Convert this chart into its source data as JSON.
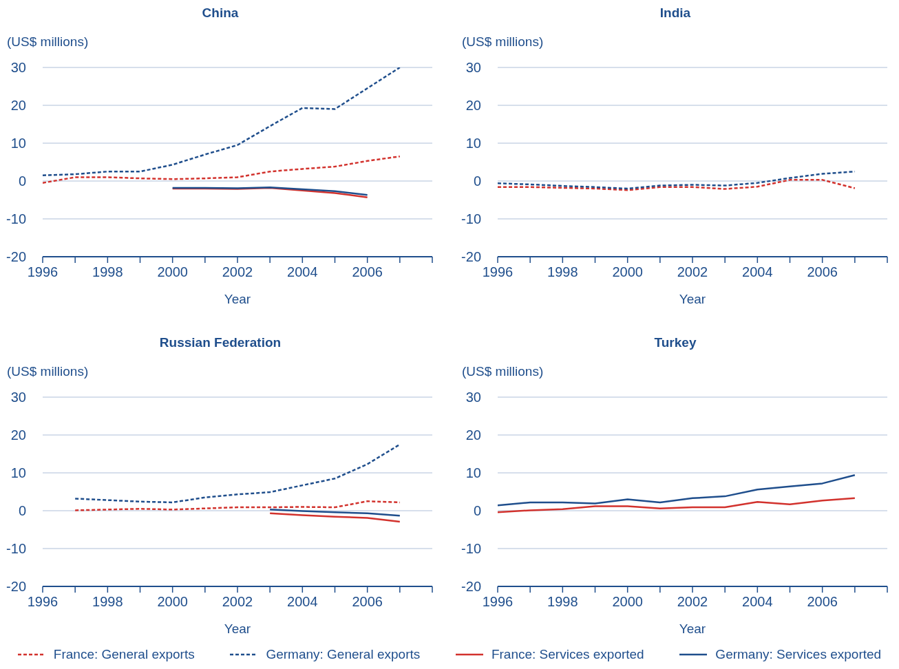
{
  "chart_data": [
    {
      "type": "line",
      "title": "China",
      "ylabel": "(US$ millions)",
      "xlabel": "Year",
      "x": [
        1996,
        1997,
        1998,
        1999,
        2000,
        2001,
        2002,
        2003,
        2004,
        2005,
        2006,
        2007
      ],
      "xlim": [
        1996,
        2008
      ],
      "xticks": [
        1996,
        {
          "value": 1997,
          "label": null
        },
        1998,
        {
          "value": 1999,
          "label": null
        },
        2000,
        {
          "value": 2001,
          "label": null
        },
        2002,
        {
          "value": 2003,
          "label": null
        },
        2004,
        {
          "value": 2005,
          "label": null
        },
        2006,
        {
          "value": 2007,
          "label": null
        },
        {
          "value": 2008,
          "label": null
        }
      ],
      "ylim": [
        -20,
        30
      ],
      "yticks": [
        -20,
        -10,
        0,
        10,
        20,
        30
      ],
      "grid": "y",
      "legend": "bottom",
      "series": [
        {
          "name": "France: General exports",
          "color": "#d2322d",
          "line_style": "dashed",
          "values": [
            -0.5,
            1,
            1,
            0.7,
            0.5,
            0.7,
            1,
            2.5,
            3.2,
            3.8,
            5.3,
            6.5
          ]
        },
        {
          "name": "Germany: General exports",
          "color": "#1f4e8c",
          "line_style": "dashed",
          "values": [
            1.5,
            1.8,
            2.5,
            2.5,
            4.3,
            7,
            9.5,
            14.5,
            19.3,
            19,
            24.5,
            30
          ]
        },
        {
          "name": "France: Services exported",
          "color": "#d2322d",
          "line_style": "solid",
          "values": [
            null,
            null,
            null,
            null,
            -2,
            -2,
            -2.1,
            -1.8,
            -2.5,
            -3.2,
            -4.3,
            null
          ]
        },
        {
          "name": "Germany: Services exported",
          "color": "#1f4e8c",
          "line_style": "solid",
          "values": [
            null,
            null,
            null,
            null,
            -1.8,
            -1.8,
            -1.9,
            -1.7,
            -2.2,
            -2.7,
            -3.7,
            null
          ]
        }
      ]
    },
    {
      "type": "line",
      "title": "India",
      "ylabel": "(US$ millions)",
      "xlabel": "Year",
      "x": [
        1996,
        1997,
        1998,
        1999,
        2000,
        2001,
        2002,
        2003,
        2004,
        2005,
        2006,
        2007
      ],
      "xlim": [
        1996,
        2008
      ],
      "xticks": [
        1996,
        {
          "value": 1997,
          "label": null
        },
        1998,
        {
          "value": 1999,
          "label": null
        },
        2000,
        {
          "value": 2001,
          "label": null
        },
        2002,
        {
          "value": 2003,
          "label": null
        },
        2004,
        {
          "value": 2005,
          "label": null
        },
        2006,
        {
          "value": 2007,
          "label": null
        },
        {
          "value": 2008,
          "label": null
        }
      ],
      "ylim": [
        -20,
        30
      ],
      "yticks": [
        -20,
        -10,
        0,
        10,
        20,
        30
      ],
      "grid": "y",
      "series": [
        {
          "color": "#d2322d",
          "line_style": "dashed",
          "values": [
            -1.6,
            -1.6,
            -1.8,
            -2,
            -2.4,
            -1.6,
            -1.6,
            -2.1,
            -1.5,
            0.3,
            0.3,
            -1.9
          ]
        },
        {
          "color": "#1f4e8c",
          "line_style": "dashed",
          "values": [
            -0.6,
            -0.9,
            -1.3,
            -1.6,
            -2,
            -1.2,
            -1,
            -1.2,
            -0.5,
            0.8,
            1.9,
            2.5
          ]
        }
      ]
    },
    {
      "type": "line",
      "title": "Russian Federation",
      "ylabel": "(US$ millions)",
      "xlabel": "Year",
      "x": [
        1997,
        1998,
        1999,
        2000,
        2001,
        2002,
        2003,
        2004,
        2005,
        2006,
        2007
      ],
      "xlim": [
        1996,
        2008
      ],
      "xticks": [
        1996,
        {
          "value": 1997,
          "label": null
        },
        1998,
        {
          "value": 1999,
          "label": null
        },
        2000,
        {
          "value": 2001,
          "label": null
        },
        2002,
        {
          "value": 2003,
          "label": null
        },
        2004,
        {
          "value": 2005,
          "label": null
        },
        2006,
        {
          "value": 2007,
          "label": null
        },
        {
          "value": 2008,
          "label": null
        }
      ],
      "ylim": [
        -20,
        30
      ],
      "yticks": [
        -20,
        -10,
        0,
        10,
        20,
        30
      ],
      "grid": "y",
      "series": [
        {
          "color": "#d2322d",
          "line_style": "dashed",
          "values": [
            0.1,
            0.3,
            0.5,
            0.3,
            0.6,
            0.9,
            0.9,
            1,
            0.9,
            2.5,
            2.2
          ]
        },
        {
          "color": "#1f4e8c",
          "line_style": "dashed",
          "values": [
            3.2,
            2.8,
            2.4,
            2.2,
            3.5,
            4.3,
            4.9,
            6.7,
            8.5,
            12.3,
            17.5
          ]
        },
        {
          "color": "#d2322d",
          "line_style": "solid",
          "values": [
            null,
            null,
            null,
            null,
            null,
            null,
            -0.7,
            -1.2,
            -1.6,
            -1.9,
            -2.9
          ]
        },
        {
          "color": "#1f4e8c",
          "line_style": "solid",
          "values": [
            null,
            null,
            null,
            null,
            null,
            null,
            0.3,
            -0.1,
            -0.4,
            -0.7,
            -1.3
          ]
        }
      ]
    },
    {
      "type": "line",
      "title": "Turkey",
      "ylabel": "(US$ millions)",
      "xlabel": "Year",
      "x": [
        1996,
        1997,
        1998,
        1999,
        2000,
        2001,
        2002,
        2003,
        2004,
        2005,
        2006,
        2007
      ],
      "xlim": [
        1996,
        2008
      ],
      "xticks": [
        1996,
        {
          "value": 1997,
          "label": null
        },
        1998,
        {
          "value": 1999,
          "label": null
        },
        2000,
        {
          "value": 2001,
          "label": null
        },
        2002,
        {
          "value": 2003,
          "label": null
        },
        2004,
        {
          "value": 2005,
          "label": null
        },
        2006,
        {
          "value": 2007,
          "label": null
        },
        {
          "value": 2008,
          "label": null
        }
      ],
      "ylim": [
        -20,
        30
      ],
      "yticks": [
        -20,
        -10,
        0,
        10,
        20,
        30
      ],
      "grid": "y",
      "series": [
        {
          "color": "#d2322d",
          "line_style": "solid",
          "values": [
            -0.4,
            0.1,
            0.4,
            1.2,
            1.2,
            0.6,
            0.9,
            0.9,
            2.3,
            1.7,
            2.7,
            3.3
          ]
        },
        {
          "color": "#1f4e8c",
          "line_style": "solid",
          "values": [
            1.4,
            2.2,
            2.2,
            1.9,
            3,
            2.2,
            3.3,
            3.8,
            5.6,
            6.4,
            7.2,
            9.4
          ]
        }
      ]
    }
  ]
}
